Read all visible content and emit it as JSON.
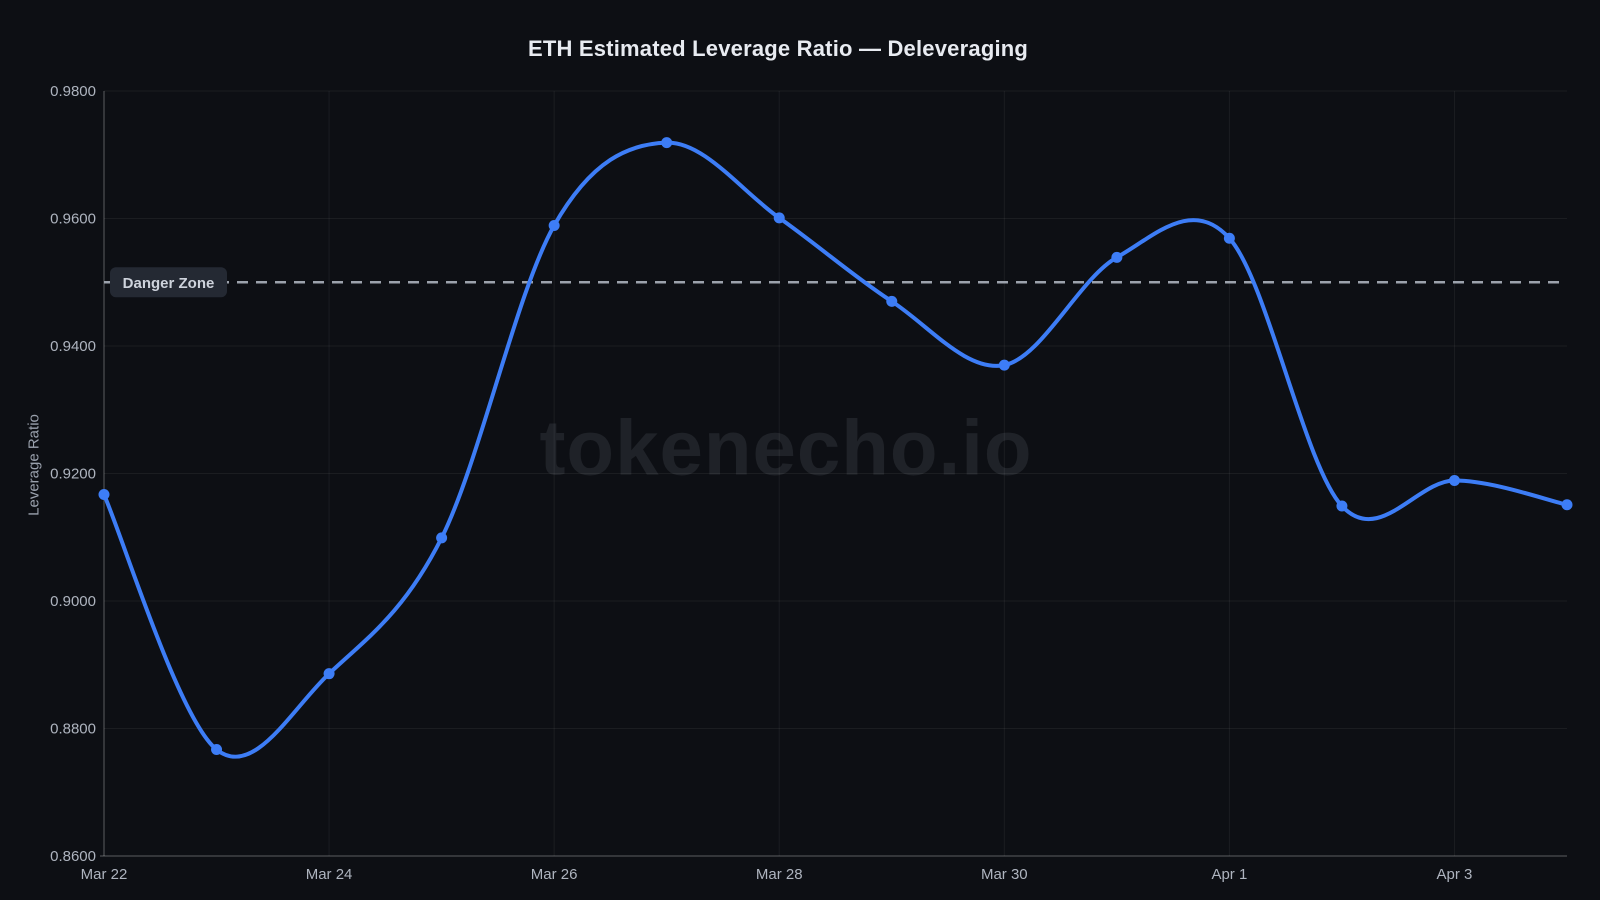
{
  "title": "ETH Estimated Leverage Ratio — Deleveraging",
  "watermark": "tokenecho.io",
  "y_axis": {
    "title": "Leverage Ratio",
    "tick_labels": [
      "0.9800",
      "0.9600",
      "0.9400",
      "0.9200",
      "0.9000",
      "0.8800",
      "0.8600"
    ],
    "tick_values": [
      0.98,
      0.96,
      0.94,
      0.92,
      0.9,
      0.88,
      0.86
    ]
  },
  "x_axis": {
    "tick_labels": [
      "Mar 22",
      "Mar 24",
      "Mar 26",
      "Mar 28",
      "Mar 30",
      "Apr 1",
      "Apr 3"
    ],
    "tick_indices": [
      0,
      2,
      4,
      6,
      8,
      10,
      12
    ]
  },
  "danger_line": {
    "label": "Danger Zone",
    "value": 0.95
  },
  "colors": {
    "background": "#0d0f14",
    "line": "#3d7df6",
    "point": "#3d7df6",
    "grid": "rgba(255,255,255,0.06)",
    "axis": "rgba(255,255,255,0.22)",
    "danger_line": "#9ca2ac",
    "danger_label_bg": "#242933",
    "danger_label_text": "#ced3dc",
    "tick_text": "#aeb4bf",
    "title_text": "#e8ebf1"
  },
  "chart_data": {
    "type": "line",
    "title": "ETH Estimated Leverage Ratio — Deleveraging",
    "xlabel": "",
    "ylabel": "Leverage Ratio",
    "ylim": [
      0.86,
      0.98
    ],
    "grid": true,
    "legend_position": "none",
    "categories": [
      "Mar 22",
      "Mar 23",
      "Mar 24",
      "Mar 25",
      "Mar 26",
      "Mar 27",
      "Mar 28",
      "Mar 29",
      "Mar 30",
      "Mar 31",
      "Apr 1",
      "Apr 2",
      "Apr 3",
      "Apr 4"
    ],
    "series": [
      {
        "name": "ETH Estimated Leverage Ratio",
        "values": [
          0.9167,
          0.8767,
          0.8886,
          0.9099,
          0.9589,
          0.9719,
          0.9601,
          0.947,
          0.937,
          0.9539,
          0.9569,
          0.9149,
          0.9189,
          0.9151
        ]
      }
    ],
    "annotations": [
      {
        "type": "hline",
        "value": 0.95,
        "label": "Danger Zone",
        "style": "dashed"
      }
    ]
  }
}
